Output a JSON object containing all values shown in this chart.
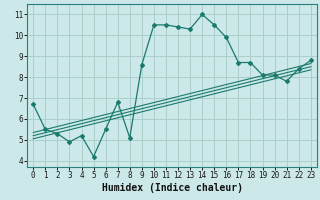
{
  "title": "",
  "xlabel": "Humidex (Indice chaleur)",
  "ylabel": "",
  "bg_color": "#cce8e8",
  "grid_color": "#aad0cc",
  "line_color": "#1a7a6e",
  "x_data": [
    0,
    1,
    2,
    3,
    4,
    5,
    6,
    7,
    8,
    9,
    10,
    11,
    12,
    13,
    14,
    15,
    16,
    17,
    18,
    19,
    20,
    21,
    22,
    23
  ],
  "y_main": [
    6.7,
    5.5,
    5.3,
    4.9,
    5.2,
    4.2,
    5.5,
    6.8,
    5.1,
    8.6,
    10.5,
    10.5,
    10.4,
    10.3,
    11.0,
    10.5,
    9.9,
    8.7,
    8.7,
    8.1,
    8.1,
    7.8,
    8.4,
    8.8
  ],
  "reg_lines": [
    {
      "x0": 0,
      "y0": 5.05,
      "x1": 23,
      "y1": 8.35
    },
    {
      "x0": 0,
      "y0": 5.2,
      "x1": 23,
      "y1": 8.5
    },
    {
      "x0": 0,
      "y0": 5.35,
      "x1": 23,
      "y1": 8.65
    }
  ],
  "xlim": [
    -0.5,
    23.5
  ],
  "ylim": [
    3.7,
    11.5
  ],
  "yticks": [
    4,
    5,
    6,
    7,
    8,
    9,
    10,
    11
  ],
  "xticks": [
    0,
    1,
    2,
    3,
    4,
    5,
    6,
    7,
    8,
    9,
    10,
    11,
    12,
    13,
    14,
    15,
    16,
    17,
    18,
    19,
    20,
    21,
    22,
    23
  ],
  "tick_fontsize": 5.5,
  "label_fontsize": 7
}
